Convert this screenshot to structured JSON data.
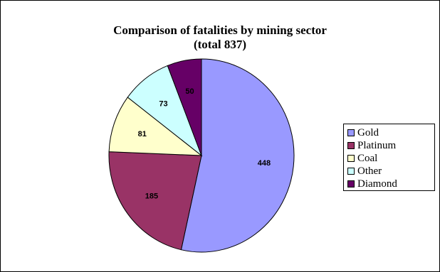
{
  "chart_data": {
    "type": "pie",
    "title": [
      "Comparison of fatalities by mining sector",
      "(total 837)"
    ],
    "total": 837,
    "slices": [
      {
        "label": "Gold",
        "value": 448,
        "value_label": "448",
        "color": "#9999FF"
      },
      {
        "label": "Platinum",
        "value": 185,
        "value_label": "185",
        "color": "#993366"
      },
      {
        "label": "Coal",
        "value": 81,
        "value_label": "81",
        "color": "#FFFFCC"
      },
      {
        "label": "Other",
        "value": 73,
        "value_label": "73",
        "color": "#CCFFFF"
      },
      {
        "label": "Diamond",
        "value": 50,
        "value_label": "50",
        "color": "#660066"
      }
    ],
    "legend_position": "right"
  }
}
